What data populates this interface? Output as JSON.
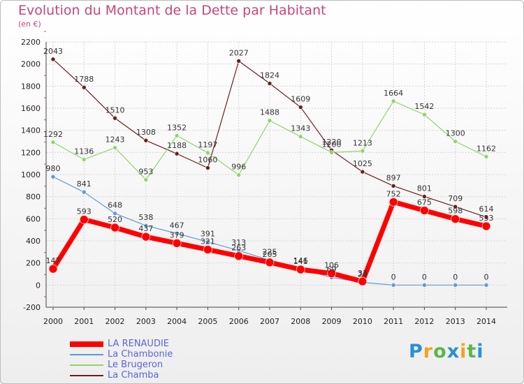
{
  "title": "Evolution du Montant de la Dette par Habitant",
  "subtitle": "(en €)",
  "logo": {
    "text": "Proxiti",
    "colors": [
      "#2a8fd6",
      "#f7a21c",
      "#57b848",
      "#2a8fd6",
      "#f7a21c",
      "#57b848",
      "#2a8fd6"
    ]
  },
  "chart_data": {
    "type": "line",
    "x": [
      "2000",
      "2001",
      "2002",
      "2003",
      "2004",
      "2005",
      "2006",
      "2007",
      "2008",
      "2009",
      "2010",
      "2011",
      "2012",
      "2013",
      "2014"
    ],
    "ylim": [
      -200,
      2200
    ],
    "yticks": [
      -200,
      0,
      200,
      400,
      600,
      800,
      1000,
      1200,
      1400,
      1600,
      1800,
      2000,
      2200
    ],
    "legend_position": "bottom-left",
    "series": [
      {
        "name": "La Chamba",
        "color": "#6b1d1d",
        "width": 1.2,
        "values": [
          2043,
          1788,
          1510,
          1308,
          1188,
          1060,
          2027,
          1824,
          1609,
          1220,
          1025,
          897,
          801,
          709,
          614
        ]
      },
      {
        "name": "Le Brugeron",
        "color": "#8fd46b",
        "width": 1.2,
        "values": [
          1292,
          1136,
          1243,
          953,
          1352,
          1197,
          996,
          1488,
          1343,
          1200,
          1213,
          1664,
          1542,
          1300,
          1162
        ]
      },
      {
        "name": "La Chambonie",
        "color": "#5b9bd5",
        "width": 1.2,
        "values": [
          980,
          841,
          648,
          538,
          467,
          391,
          313,
          225,
          146,
          69,
          24,
          0,
          0,
          0,
          0
        ]
      },
      {
        "name": "LA RENAUDIE",
        "color": "#ff0000",
        "width": 7,
        "values": [
          147,
          593,
          520,
          437,
          379,
          321,
          263,
          205,
          141,
          106,
          33,
          752,
          675,
          598,
          533
        ]
      }
    ]
  }
}
